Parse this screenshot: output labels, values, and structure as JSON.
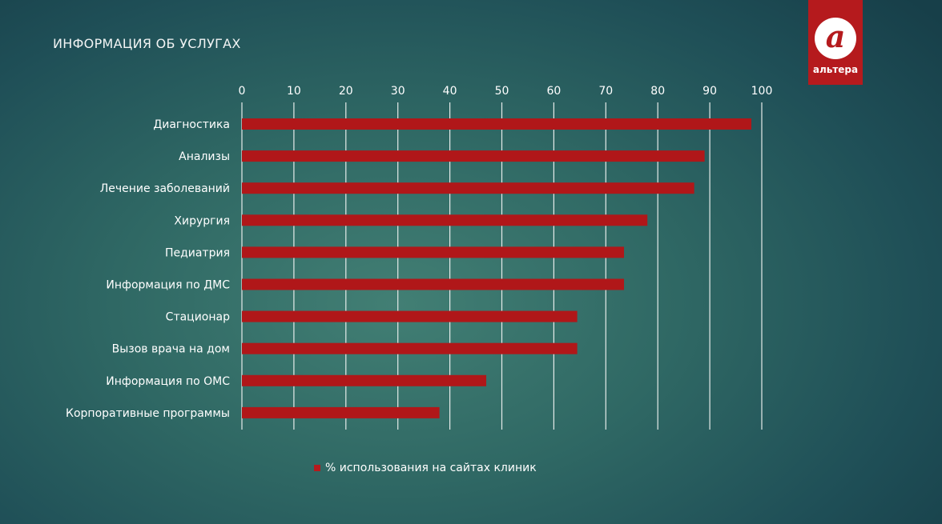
{
  "chart_data": {
    "type": "bar",
    "orientation": "horizontal",
    "title": "ИНФОРМАЦИЯ ОБ УСЛУГАХ",
    "categories": [
      "Диагностика",
      "Анализы",
      "Лечение заболеваний",
      "Хирургия",
      "Педиатрия",
      "Информация по ДМС",
      "Стационар",
      "Вызов врача на дом",
      "Информация по ОМС",
      "Корпоративные программы"
    ],
    "series": [
      {
        "name": "% использования на сайтах клиник",
        "values": [
          98,
          89,
          87,
          78,
          73.5,
          73.5,
          64.5,
          64.5,
          47,
          38
        ],
        "color": "#b01719"
      }
    ],
    "xlim": [
      0,
      100
    ],
    "xticks": [
      "0",
      "10",
      "20",
      "30",
      "40",
      "50",
      "60",
      "70",
      "80",
      "90",
      "100"
    ],
    "grid": true,
    "legend_position": "bottom"
  },
  "logo": {
    "text": "альтера",
    "mark": "а"
  }
}
